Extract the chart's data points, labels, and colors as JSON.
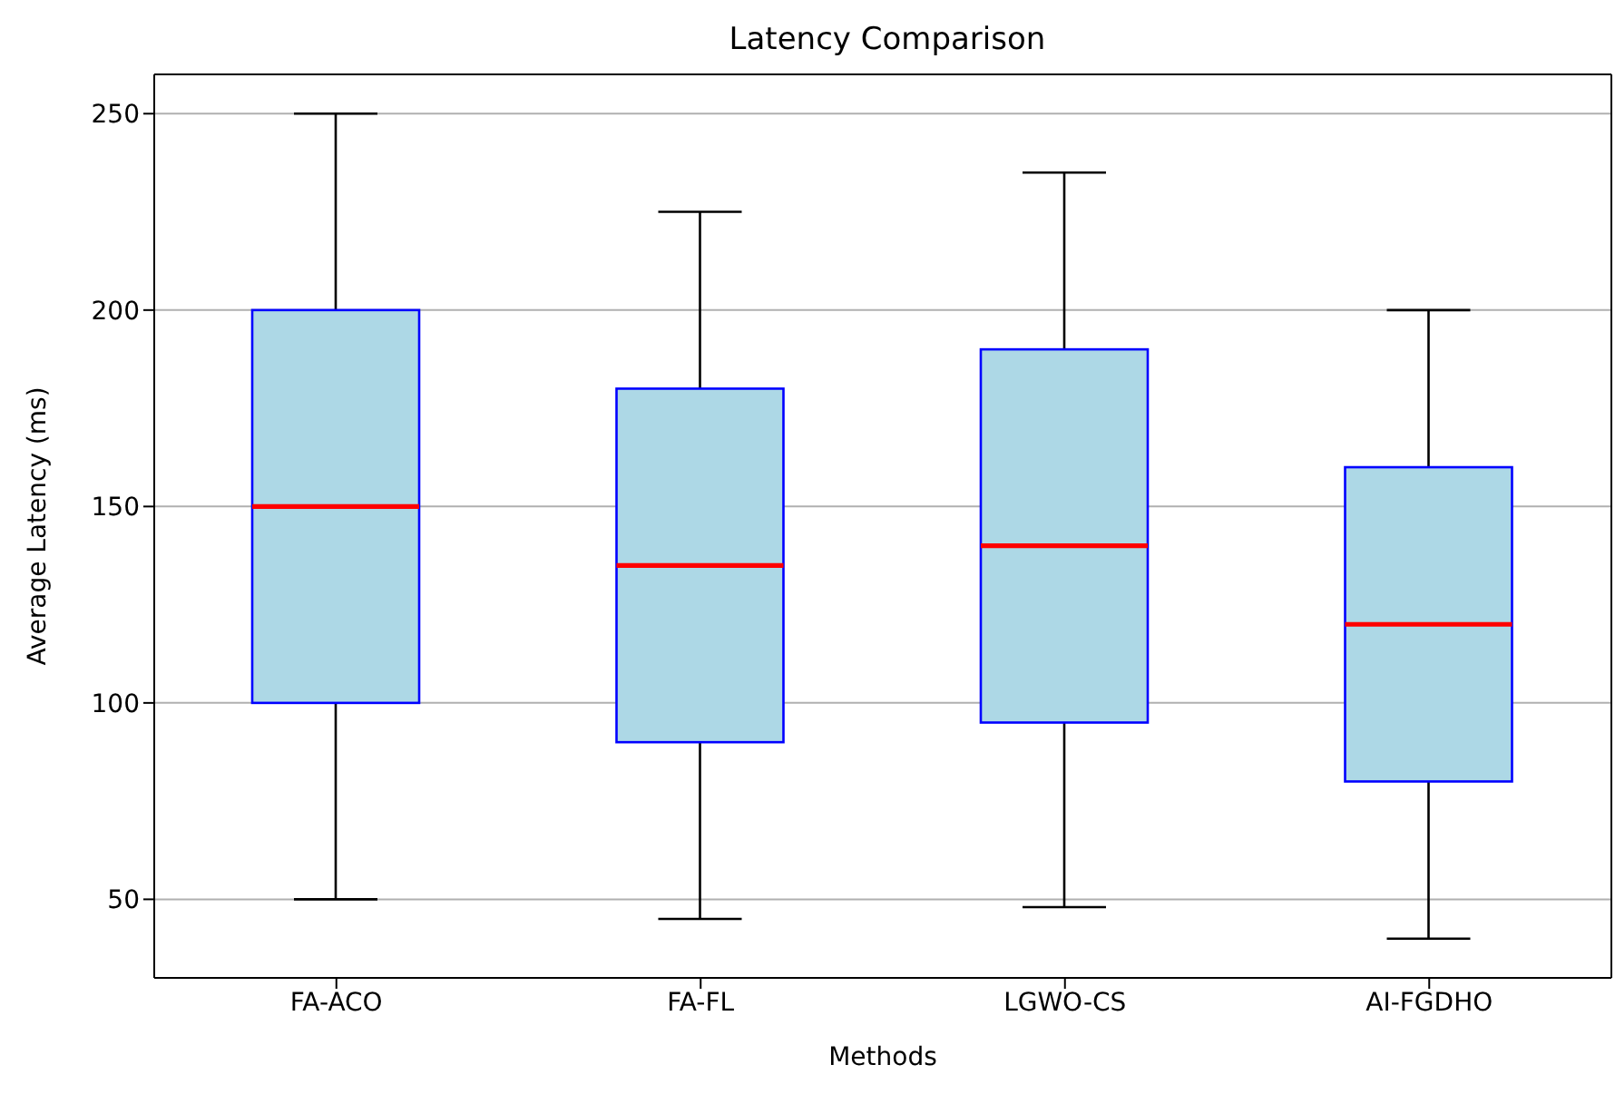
{
  "chart_data": {
    "type": "box",
    "title": "Latency Comparison",
    "xlabel": "Methods",
    "ylabel": "Average Latency (ms)",
    "categories": [
      "FA-ACO",
      "FA-FL",
      "LGWO-CS",
      "AI-FGDHO"
    ],
    "boxes": [
      {
        "low": 50,
        "q1": 100,
        "median": 150,
        "q3": 200,
        "high": 250
      },
      {
        "low": 45,
        "q1": 90,
        "median": 135,
        "q3": 180,
        "high": 225
      },
      {
        "low": 48,
        "q1": 95,
        "median": 140,
        "q3": 190,
        "high": 235
      },
      {
        "low": 40,
        "q1": 80,
        "median": 120,
        "q3": 160,
        "high": 200
      }
    ],
    "color": "#add8e6",
    "ylim": [
      30,
      260
    ],
    "yticks": [
      50,
      100,
      150,
      200,
      250
    ],
    "grid": "y"
  }
}
